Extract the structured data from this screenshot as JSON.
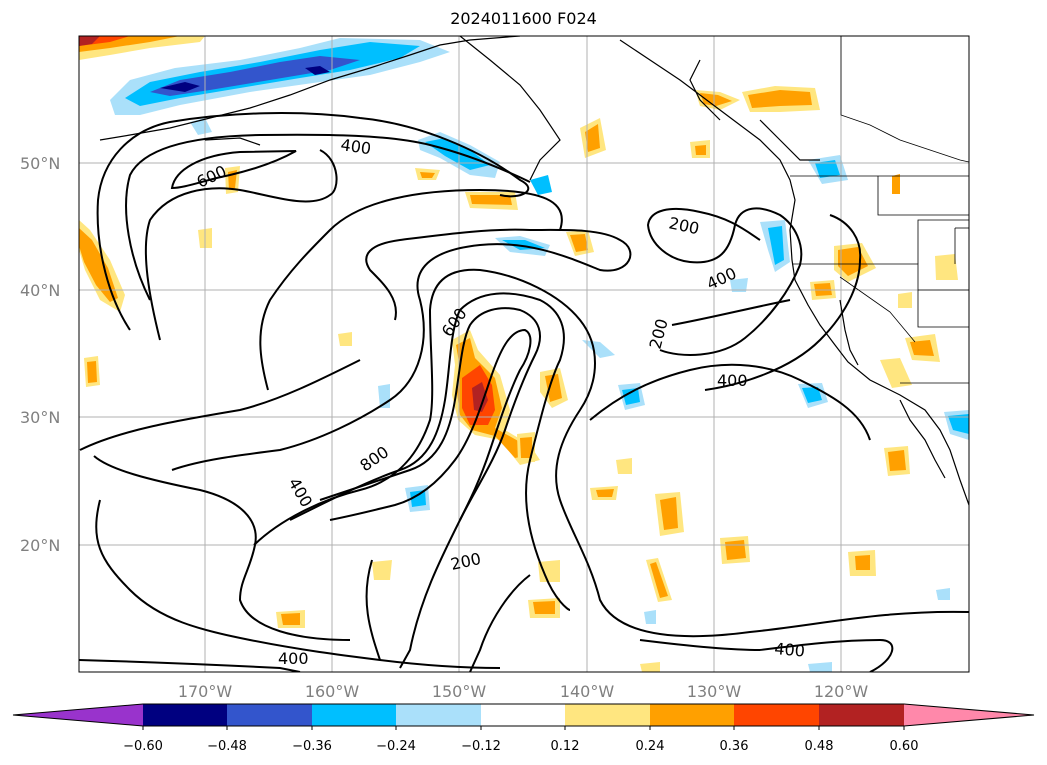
{
  "title": "2024011600 F024",
  "lat_labels": [
    "50°N",
    "40°N",
    "30°N",
    "20°N"
  ],
  "lon_labels": [
    "170°W",
    "160°W",
    "150°W",
    "140°W",
    "130°W",
    "120°W"
  ],
  "contour_labels": [
    "400",
    "600",
    "600",
    "800",
    "400",
    "200",
    "400",
    "200",
    "400",
    "200",
    "400",
    "400"
  ],
  "colorbar": {
    "ticks": [
      "−0.60",
      "−0.48",
      "−0.36",
      "−0.24",
      "−0.12",
      "0.12",
      "0.24",
      "0.36",
      "0.48",
      "0.60"
    ],
    "colors": [
      "#9933cc",
      "#000080",
      "#3355cc",
      "#00bfff",
      "#aae0fa",
      "#ffffff",
      "#ffe680",
      "#ffa000",
      "#ff4500",
      "#b22222",
      "#ff88aa"
    ]
  },
  "colors": {
    "contour": "#000000",
    "grid": "#b0b0b0",
    "coast": "#000000"
  }
}
